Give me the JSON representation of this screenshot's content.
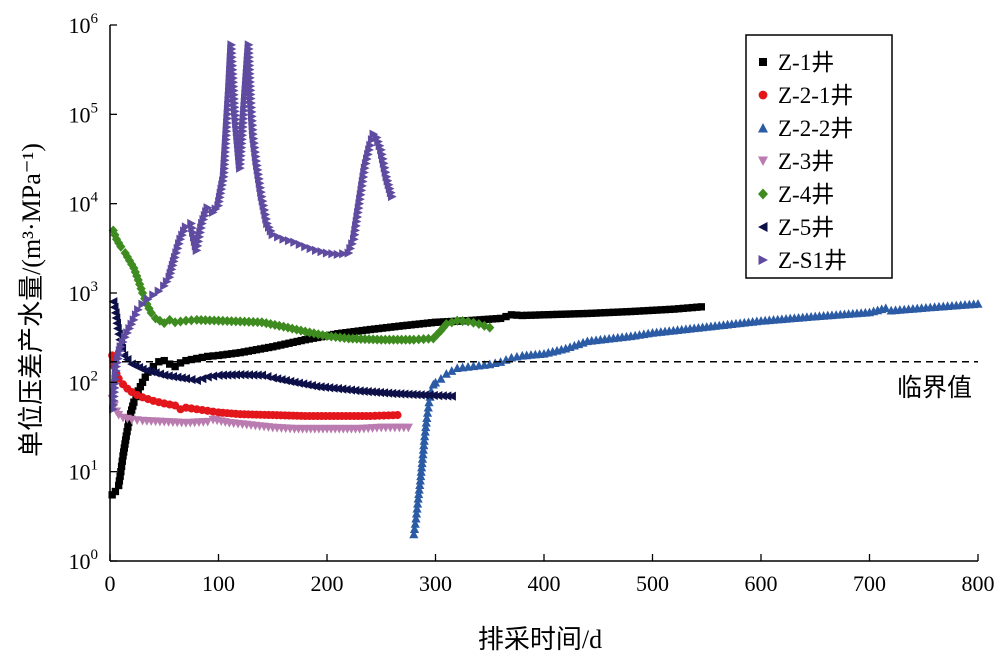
{
  "chart_data": {
    "type": "scatter",
    "xlabel": "排采时间/d",
    "ylabel": "单位压差产水量/(m³·MPa⁻¹)",
    "xlim": [
      0,
      800
    ],
    "ylim": [
      1,
      1000000
    ],
    "yscale": "log",
    "x_ticks": [
      "0",
      "100",
      "200",
      "300",
      "400",
      "500",
      "600",
      "700",
      "800"
    ],
    "y_ticks": [
      {
        "base": "10",
        "exp": "0",
        "value": 1
      },
      {
        "base": "10",
        "exp": "1",
        "value": 10
      },
      {
        "base": "10",
        "exp": "2",
        "value": 100
      },
      {
        "base": "10",
        "exp": "3",
        "value": 1000
      },
      {
        "base": "10",
        "exp": "4",
        "value": 10000
      },
      {
        "base": "10",
        "exp": "5",
        "value": 100000
      },
      {
        "base": "10",
        "exp": "6",
        "value": 1000000
      }
    ],
    "grid": false,
    "legend_position": "top-right",
    "threshold": {
      "value": 170,
      "label": "临界值"
    },
    "series": [
      {
        "name": "Z-1井",
        "marker": "square",
        "color": "#000000",
        "points": [
          [
            2,
            5.5
          ],
          [
            5,
            6
          ],
          [
            8,
            7
          ],
          [
            10,
            10
          ],
          [
            12,
            15
          ],
          [
            15,
            25
          ],
          [
            18,
            40
          ],
          [
            22,
            60
          ],
          [
            26,
            80
          ],
          [
            30,
            100
          ],
          [
            35,
            130
          ],
          [
            40,
            150
          ],
          [
            45,
            170
          ],
          [
            50,
            175
          ],
          [
            55,
            160
          ],
          [
            60,
            150
          ],
          [
            65,
            165
          ],
          [
            70,
            175
          ],
          [
            80,
            185
          ],
          [
            90,
            195
          ],
          [
            100,
            200
          ],
          [
            120,
            215
          ],
          [
            150,
            250
          ],
          [
            180,
            300
          ],
          [
            210,
            350
          ],
          [
            240,
            390
          ],
          [
            270,
            430
          ],
          [
            300,
            470
          ],
          [
            330,
            490
          ],
          [
            360,
            520
          ],
          [
            370,
            570
          ],
          [
            380,
            560
          ],
          [
            400,
            570
          ],
          [
            440,
            590
          ],
          [
            480,
            620
          ],
          [
            520,
            660
          ],
          [
            545,
            700
          ]
        ]
      },
      {
        "name": "Z-2-1井",
        "marker": "circle",
        "color": "#e3161c",
        "points": [
          [
            2,
            200
          ],
          [
            4,
            150
          ],
          [
            6,
            125
          ],
          [
            8,
            110
          ],
          [
            12,
            95
          ],
          [
            16,
            85
          ],
          [
            20,
            78
          ],
          [
            25,
            72
          ],
          [
            30,
            68
          ],
          [
            35,
            65
          ],
          [
            40,
            62
          ],
          [
            50,
            58
          ],
          [
            60,
            55
          ],
          [
            65,
            50
          ],
          [
            70,
            52
          ],
          [
            80,
            50
          ],
          [
            90,
            48
          ],
          [
            100,
            46
          ],
          [
            120,
            44
          ],
          [
            150,
            43
          ],
          [
            180,
            42
          ],
          [
            210,
            42
          ],
          [
            240,
            42
          ],
          [
            265,
            43
          ]
        ]
      },
      {
        "name": "Z-2-2井",
        "marker": "triangle-up",
        "color": "#2c5ba5",
        "points": [
          [
            280,
            2
          ],
          [
            282,
            3
          ],
          [
            284,
            5
          ],
          [
            286,
            8
          ],
          [
            288,
            14
          ],
          [
            290,
            25
          ],
          [
            292,
            40
          ],
          [
            294,
            60
          ],
          [
            296,
            80
          ],
          [
            298,
            95
          ],
          [
            300,
            100
          ],
          [
            305,
            110
          ],
          [
            310,
            125
          ],
          [
            315,
            135
          ],
          [
            320,
            145
          ],
          [
            330,
            150
          ],
          [
            340,
            155
          ],
          [
            350,
            160
          ],
          [
            360,
            170
          ],
          [
            370,
            190
          ],
          [
            380,
            200
          ],
          [
            400,
            210
          ],
          [
            420,
            240
          ],
          [
            440,
            290
          ],
          [
            460,
            310
          ],
          [
            480,
            330
          ],
          [
            500,
            360
          ],
          [
            550,
            420
          ],
          [
            600,
            490
          ],
          [
            650,
            550
          ],
          [
            700,
            610
          ],
          [
            715,
            680
          ],
          [
            720,
            640
          ],
          [
            760,
            700
          ],
          [
            800,
            760
          ]
        ]
      },
      {
        "name": "Z-3井",
        "marker": "triangle-down",
        "color": "#b97bb0",
        "points": [
          [
            2,
            65
          ],
          [
            4,
            55
          ],
          [
            6,
            47
          ],
          [
            8,
            43
          ],
          [
            12,
            40
          ],
          [
            20,
            38
          ],
          [
            30,
            37
          ],
          [
            50,
            36
          ],
          [
            70,
            35
          ],
          [
            90,
            36
          ],
          [
            95,
            38
          ],
          [
            110,
            35
          ],
          [
            130,
            33
          ],
          [
            150,
            31
          ],
          [
            170,
            30
          ],
          [
            200,
            30
          ],
          [
            230,
            30
          ],
          [
            250,
            31
          ],
          [
            275,
            31
          ]
        ]
      },
      {
        "name": "Z-4井",
        "marker": "diamond",
        "color": "#3e8c20",
        "points": [
          [
            3,
            5000
          ],
          [
            6,
            4000
          ],
          [
            10,
            3300
          ],
          [
            14,
            2800
          ],
          [
            18,
            2300
          ],
          [
            22,
            1900
          ],
          [
            26,
            1400
          ],
          [
            30,
            1000
          ],
          [
            34,
            750
          ],
          [
            38,
            600
          ],
          [
            42,
            520
          ],
          [
            50,
            460
          ],
          [
            55,
            500
          ],
          [
            60,
            470
          ],
          [
            70,
            490
          ],
          [
            80,
            500
          ],
          [
            100,
            490
          ],
          [
            120,
            480
          ],
          [
            140,
            470
          ],
          [
            160,
            420
          ],
          [
            180,
            370
          ],
          [
            200,
            330
          ],
          [
            220,
            310
          ],
          [
            250,
            300
          ],
          [
            280,
            300
          ],
          [
            298,
            310
          ],
          [
            305,
            380
          ],
          [
            310,
            450
          ],
          [
            320,
            490
          ],
          [
            330,
            480
          ],
          [
            340,
            450
          ],
          [
            350,
            410
          ]
        ]
      },
      {
        "name": "Z-5井",
        "marker": "triangle-left",
        "color": "#0c0f48",
        "points": [
          [
            3,
            800
          ],
          [
            5,
            600
          ],
          [
            7,
            400
          ],
          [
            9,
            300
          ],
          [
            11,
            240
          ],
          [
            13,
            200
          ],
          [
            16,
            180
          ],
          [
            20,
            160
          ],
          [
            30,
            140
          ],
          [
            50,
            120
          ],
          [
            70,
            110
          ],
          [
            80,
            105
          ],
          [
            90,
            115
          ],
          [
            100,
            120
          ],
          [
            120,
            122
          ],
          [
            140,
            120
          ],
          [
            150,
            112
          ],
          [
            170,
            100
          ],
          [
            190,
            90
          ],
          [
            210,
            85
          ],
          [
            230,
            80
          ],
          [
            260,
            75
          ],
          [
            290,
            72
          ],
          [
            315,
            70
          ]
        ]
      },
      {
        "name": "Z-S1井",
        "marker": "triangle-right",
        "color": "#5f4ba0",
        "points": [
          [
            3,
            50
          ],
          [
            6,
            150
          ],
          [
            10,
            250
          ],
          [
            14,
            320
          ],
          [
            18,
            400
          ],
          [
            22,
            500
          ],
          [
            26,
            650
          ],
          [
            30,
            750
          ],
          [
            35,
            850
          ],
          [
            40,
            950
          ],
          [
            45,
            1050
          ],
          [
            50,
            1200
          ],
          [
            55,
            1500
          ],
          [
            60,
            2500
          ],
          [
            65,
            4000
          ],
          [
            70,
            5500
          ],
          [
            75,
            6000
          ],
          [
            80,
            3000
          ],
          [
            85,
            6000
          ],
          [
            90,
            9000
          ],
          [
            95,
            8000
          ],
          [
            100,
            9500
          ],
          [
            105,
            20000
          ],
          [
            108,
            80000
          ],
          [
            110,
            200000
          ],
          [
            112,
            600000
          ],
          [
            115,
            120000
          ],
          [
            120,
            25000
          ],
          [
            128,
            600000
          ],
          [
            130,
            150000
          ],
          [
            132,
            60000
          ],
          [
            135,
            30000
          ],
          [
            140,
            12000
          ],
          [
            145,
            6000
          ],
          [
            150,
            4500
          ],
          [
            160,
            4000
          ],
          [
            170,
            3700
          ],
          [
            180,
            3300
          ],
          [
            190,
            3000
          ],
          [
            200,
            2800
          ],
          [
            210,
            2700
          ],
          [
            220,
            2800
          ],
          [
            225,
            4000
          ],
          [
            230,
            10000
          ],
          [
            235,
            25000
          ],
          [
            240,
            45000
          ],
          [
            243,
            60000
          ],
          [
            246,
            55000
          ],
          [
            250,
            40000
          ],
          [
            255,
            20000
          ],
          [
            260,
            12000
          ]
        ]
      }
    ]
  }
}
